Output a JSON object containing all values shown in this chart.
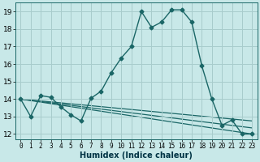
{
  "xlabel": "Humidex (Indice chaleur)",
  "bg_color": "#c8e8e8",
  "grid_color": "#a8cccc",
  "line_color": "#1a6666",
  "xlim": [
    -0.5,
    23.5
  ],
  "ylim": [
    11.7,
    19.5
  ],
  "yticks": [
    12,
    13,
    14,
    15,
    16,
    17,
    18,
    19
  ],
  "xticks": [
    0,
    1,
    2,
    3,
    4,
    5,
    6,
    7,
    8,
    9,
    10,
    11,
    12,
    13,
    14,
    15,
    16,
    17,
    18,
    19,
    20,
    21,
    22,
    23
  ],
  "series_main": {
    "x": [
      0,
      1,
      2,
      3,
      4,
      5,
      6,
      7,
      8,
      9,
      10,
      11,
      12,
      13,
      14,
      15,
      16,
      17,
      18,
      19,
      20,
      21,
      22,
      23
    ],
    "y": [
      14.0,
      13.0,
      14.2,
      14.1,
      13.55,
      13.1,
      12.75,
      14.05,
      14.45,
      15.5,
      16.35,
      17.0,
      19.0,
      18.1,
      18.4,
      19.1,
      19.1,
      18.4,
      15.9,
      14.0,
      12.5,
      12.8,
      12.0,
      12.0
    ]
  },
  "series_lines": [
    {
      "x": [
        0,
        23
      ],
      "y": [
        14.0,
        12.0
      ]
    },
    {
      "x": [
        0,
        23
      ],
      "y": [
        14.0,
        12.35
      ]
    },
    {
      "x": [
        0,
        23
      ],
      "y": [
        14.0,
        12.75
      ]
    }
  ],
  "xlabel_fontsize": 7,
  "xlabel_color": "#003344",
  "tick_fontsize": 5.5,
  "ytick_fontsize": 6.5,
  "marker": "D",
  "markersize": 2.5,
  "linewidth": 1.0,
  "ref_linewidth": 0.9
}
